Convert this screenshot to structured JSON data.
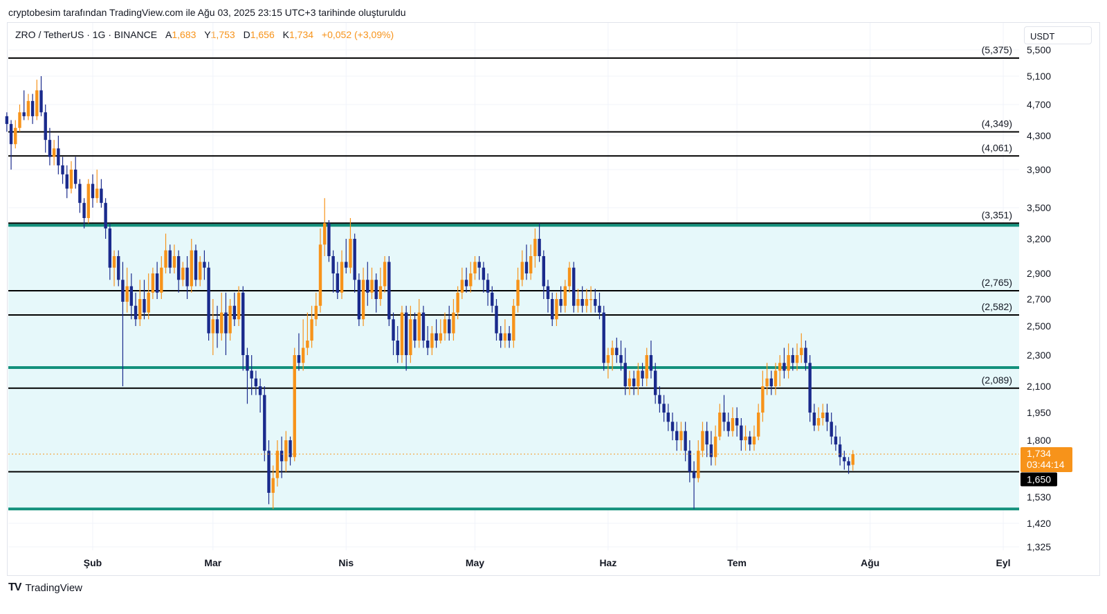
{
  "caption": "cryptobesim tarafından TradingView.com ile Ağu 03, 2025 23:15 UTC+3 tarihinde oluşturuldu",
  "legend": {
    "symbol": "ZRO / TetherUS · 1G · BINANCE",
    "open_label": "A",
    "open": "1,683",
    "high_label": "Y",
    "high": "1,753",
    "low_label": "D",
    "low": "1,656",
    "close_label": "K",
    "close": "1,734",
    "change": "+0,052 (+3,09%)"
  },
  "currency_button": "USDT",
  "price_tag": {
    "price": "1,734",
    "countdown": "03:44:14"
  },
  "level_tag": "1,650",
  "brand": "TradingView",
  "colors": {
    "up": "#f7931a",
    "down": "#1a2a8c",
    "channel": "#13917c",
    "channel_fill": "#e6f8fa",
    "level": "#000000",
    "grid": "#f0f3fa"
  },
  "chart_data": {
    "type": "candlestick",
    "y_axis_ticks": [
      "5,500",
      "5,100",
      "4,700",
      "4,300",
      "3,900",
      "3,500",
      "3,200",
      "2,900",
      "2,700",
      "2,500",
      "2,300",
      "2,100",
      "1,950",
      "1,800",
      "1,530",
      "1,420",
      "1,325"
    ],
    "y_axis_values": [
      5.5,
      5.1,
      4.7,
      4.3,
      3.9,
      3.5,
      3.2,
      2.9,
      2.7,
      2.5,
      2.3,
      2.1,
      1.95,
      1.8,
      1.53,
      1.42,
      1.325
    ],
    "x_axis_ticks": [
      "Şub",
      "Mar",
      "Nis",
      "May",
      "Haz",
      "Tem",
      "Ağu",
      "Eyl"
    ],
    "x_axis_dates": [
      "2025-02-01",
      "2025-03-01",
      "2025-04-01",
      "2025-05-01",
      "2025-06-01",
      "2025-07-01",
      "2025-08-01",
      "2025-09-01"
    ],
    "horizontal_levels": [
      {
        "value": 5.375,
        "label": "(5,375)"
      },
      {
        "value": 4.349,
        "label": "(4,349)"
      },
      {
        "value": 4.061,
        "label": "(4,061)"
      },
      {
        "value": 3.351,
        "label": "(3,351)"
      },
      {
        "value": 2.765,
        "label": "(2,765)"
      },
      {
        "value": 2.582,
        "label": "(2,582)"
      },
      {
        "value": 2.089,
        "label": "(2,089)"
      },
      {
        "value": 1.65,
        "label": ""
      }
    ],
    "channel": {
      "upper": 3.33,
      "middle": 2.22,
      "lower": 1.48
    },
    "last_price": 1.734,
    "first_date": "2025-01-12",
    "candles": [
      [
        4.55,
        4.45,
        4.6,
        4.35
      ],
      [
        4.45,
        4.2,
        4.5,
        3.9
      ],
      [
        4.2,
        4.4,
        4.5,
        4.15
      ],
      [
        4.4,
        4.6,
        4.7,
        4.35
      ],
      [
        4.6,
        4.55,
        4.9,
        4.5
      ],
      [
        4.55,
        4.75,
        4.85,
        4.5
      ],
      [
        4.75,
        4.55,
        4.85,
        4.45
      ],
      [
        4.55,
        4.9,
        5.05,
        4.5
      ],
      [
        4.9,
        4.6,
        5.1,
        4.55
      ],
      [
        4.6,
        4.25,
        4.7,
        4.1
      ],
      [
        4.25,
        4.05,
        4.4,
        3.95
      ],
      [
        4.05,
        4.15,
        4.25,
        3.95
      ],
      [
        4.15,
        3.95,
        4.3,
        3.85
      ],
      [
        3.95,
        3.85,
        4.05,
        3.75
      ],
      [
        3.85,
        3.7,
        3.95,
        3.6
      ],
      [
        3.7,
        3.9,
        4.0,
        3.65
      ],
      [
        3.9,
        3.75,
        4.05,
        3.7
      ],
      [
        3.75,
        3.55,
        3.8,
        3.45
      ],
      [
        3.55,
        3.4,
        3.6,
        3.3
      ],
      [
        3.4,
        3.75,
        3.8,
        3.35
      ],
      [
        3.75,
        3.6,
        3.85,
        3.5
      ],
      [
        3.6,
        3.7,
        3.9,
        3.55
      ],
      [
        3.7,
        3.55,
        3.8,
        3.5
      ],
      [
        3.55,
        3.3,
        3.6,
        3.2
      ],
      [
        3.3,
        2.95,
        3.35,
        2.85
      ],
      [
        2.95,
        3.05,
        3.1,
        2.8
      ],
      [
        3.05,
        2.85,
        3.1,
        2.8
      ],
      [
        2.85,
        2.68,
        3.0,
        2.1
      ],
      [
        2.68,
        2.8,
        2.95,
        2.6
      ],
      [
        2.8,
        2.65,
        2.9,
        2.55
      ],
      [
        2.65,
        2.55,
        2.75,
        2.5
      ],
      [
        2.55,
        2.7,
        2.85,
        2.5
      ],
      [
        2.7,
        2.6,
        2.85,
        2.55
      ],
      [
        2.6,
        2.75,
        2.9,
        2.55
      ],
      [
        2.75,
        2.9,
        2.95,
        2.7
      ],
      [
        2.9,
        2.75,
        3.0,
        2.7
      ],
      [
        2.75,
        2.95,
        3.05,
        2.7
      ],
      [
        2.95,
        3.1,
        3.25,
        2.9
      ],
      [
        3.1,
        2.95,
        3.15,
        2.9
      ],
      [
        2.95,
        3.05,
        3.15,
        2.9
      ],
      [
        3.05,
        2.85,
        3.1,
        2.75
      ],
      [
        2.85,
        2.95,
        3.0,
        2.8
      ],
      [
        2.95,
        2.8,
        3.05,
        2.7
      ],
      [
        2.8,
        3.1,
        3.2,
        2.75
      ],
      [
        3.1,
        2.85,
        3.15,
        2.8
      ],
      [
        2.85,
        3.0,
        3.05,
        2.8
      ],
      [
        3.0,
        2.95,
        3.1,
        2.85
      ],
      [
        2.95,
        2.45,
        3.0,
        2.4
      ],
      [
        2.45,
        2.55,
        2.7,
        2.3
      ],
      [
        2.55,
        2.45,
        2.65,
        2.35
      ],
      [
        2.45,
        2.6,
        2.75,
        2.4
      ],
      [
        2.6,
        2.45,
        2.75,
        2.3
      ],
      [
        2.45,
        2.65,
        2.7,
        2.4
      ],
      [
        2.65,
        2.55,
        2.75,
        2.5
      ],
      [
        2.55,
        2.75,
        2.8,
        2.5
      ],
      [
        2.75,
        2.3,
        2.8,
        2.2
      ],
      [
        2.3,
        2.2,
        2.35,
        2.0
      ],
      [
        2.2,
        2.15,
        2.3,
        2.05
      ],
      [
        2.15,
        2.1,
        2.2,
        2.05
      ],
      [
        2.1,
        2.05,
        2.15,
        1.95
      ],
      [
        2.05,
        1.75,
        2.1,
        1.7
      ],
      [
        1.75,
        1.55,
        1.8,
        1.5
      ],
      [
        1.55,
        1.62,
        1.68,
        1.48
      ],
      [
        1.62,
        1.75,
        1.8,
        1.58
      ],
      [
        1.75,
        1.7,
        1.82,
        1.62
      ],
      [
        1.7,
        1.8,
        1.85,
        1.65
      ],
      [
        1.8,
        1.72,
        1.82,
        1.68
      ],
      [
        1.72,
        2.3,
        2.35,
        1.7
      ],
      [
        2.3,
        2.25,
        2.45,
        2.2
      ],
      [
        2.25,
        2.35,
        2.55,
        2.2
      ],
      [
        2.35,
        2.4,
        2.6,
        2.3
      ],
      [
        2.4,
        2.55,
        2.65,
        2.35
      ],
      [
        2.55,
        2.65,
        2.75,
        2.5
      ],
      [
        2.65,
        3.15,
        3.3,
        2.6
      ],
      [
        3.15,
        3.35,
        3.6,
        3.05
      ],
      [
        3.35,
        3.05,
        3.38,
        3.0
      ],
      [
        3.05,
        2.9,
        3.1,
        2.75
      ],
      [
        2.9,
        2.75,
        3.0,
        2.7
      ],
      [
        2.75,
        3.0,
        3.1,
        2.7
      ],
      [
        3.0,
        2.95,
        3.2,
        2.9
      ],
      [
        2.95,
        3.2,
        3.4,
        2.9
      ],
      [
        3.2,
        2.85,
        3.25,
        2.75
      ],
      [
        2.85,
        2.55,
        2.9,
        2.5
      ],
      [
        2.55,
        2.85,
        2.95,
        2.5
      ],
      [
        2.85,
        2.75,
        3.0,
        2.65
      ],
      [
        2.75,
        2.85,
        2.95,
        2.7
      ],
      [
        2.85,
        2.7,
        2.9,
        2.6
      ],
      [
        2.7,
        2.8,
        2.95,
        2.65
      ],
      [
        2.8,
        3.0,
        3.05,
        2.75
      ],
      [
        3.0,
        2.55,
        3.05,
        2.5
      ],
      [
        2.55,
        2.4,
        2.6,
        2.3
      ],
      [
        2.4,
        2.3,
        2.5,
        2.25
      ],
      [
        2.3,
        2.6,
        2.65,
        2.25
      ],
      [
        2.6,
        2.3,
        2.65,
        2.2
      ],
      [
        2.3,
        2.55,
        2.65,
        2.25
      ],
      [
        2.55,
        2.4,
        2.6,
        2.35
      ],
      [
        2.4,
        2.6,
        2.7,
        2.35
      ],
      [
        2.6,
        2.4,
        2.65,
        2.35
      ],
      [
        2.4,
        2.35,
        2.5,
        2.3
      ],
      [
        2.35,
        2.45,
        2.5,
        2.3
      ],
      [
        2.45,
        2.4,
        2.55,
        2.35
      ],
      [
        2.4,
        2.45,
        2.55,
        2.38
      ],
      [
        2.45,
        2.55,
        2.6,
        2.4
      ],
      [
        2.55,
        2.45,
        2.65,
        2.4
      ],
      [
        2.45,
        2.6,
        2.7,
        2.4
      ],
      [
        2.6,
        2.75,
        2.8,
        2.55
      ],
      [
        2.75,
        2.85,
        2.95,
        2.7
      ],
      [
        2.85,
        2.8,
        2.95,
        2.75
      ],
      [
        2.8,
        2.9,
        3.0,
        2.75
      ],
      [
        2.9,
        3.0,
        3.05,
        2.85
      ],
      [
        3.0,
        2.95,
        3.05,
        2.85
      ],
      [
        2.95,
        2.85,
        3.0,
        2.75
      ],
      [
        2.85,
        2.75,
        2.9,
        2.65
      ],
      [
        2.75,
        2.65,
        2.8,
        2.6
      ],
      [
        2.65,
        2.45,
        2.7,
        2.4
      ],
      [
        2.45,
        2.4,
        2.5,
        2.35
      ],
      [
        2.4,
        2.45,
        2.55,
        2.35
      ],
      [
        2.45,
        2.4,
        2.5,
        2.35
      ],
      [
        2.4,
        2.65,
        2.7,
        2.35
      ],
      [
        2.65,
        2.85,
        2.95,
        2.6
      ],
      [
        2.85,
        3.0,
        3.1,
        2.8
      ],
      [
        3.0,
        2.9,
        3.15,
        2.85
      ],
      [
        2.9,
        3.05,
        3.15,
        2.85
      ],
      [
        3.05,
        3.2,
        3.3,
        2.95
      ],
      [
        3.2,
        3.05,
        3.35,
        3.0
      ],
      [
        3.05,
        2.8,
        3.1,
        2.7
      ],
      [
        2.8,
        2.7,
        2.85,
        2.6
      ],
      [
        2.7,
        2.55,
        2.75,
        2.5
      ],
      [
        2.55,
        2.7,
        2.75,
        2.5
      ],
      [
        2.7,
        2.65,
        2.8,
        2.6
      ],
      [
        2.65,
        2.8,
        2.85,
        2.6
      ],
      [
        2.8,
        2.95,
        3.0,
        2.75
      ],
      [
        2.95,
        2.65,
        3.0,
        2.6
      ],
      [
        2.65,
        2.7,
        2.78,
        2.6
      ],
      [
        2.7,
        2.65,
        2.8,
        2.6
      ],
      [
        2.65,
        2.7,
        2.78,
        2.6
      ],
      [
        2.7,
        2.7,
        2.8,
        2.6
      ],
      [
        2.7,
        2.65,
        2.78,
        2.6
      ],
      [
        2.65,
        2.6,
        2.75,
        2.55
      ],
      [
        2.6,
        2.25,
        2.65,
        2.2
      ],
      [
        2.25,
        2.3,
        2.35,
        2.15
      ],
      [
        2.3,
        2.35,
        2.4,
        2.2
      ],
      [
        2.35,
        2.3,
        2.42,
        2.25
      ],
      [
        2.3,
        2.25,
        2.4,
        2.2
      ],
      [
        2.25,
        2.1,
        2.35,
        2.05
      ],
      [
        2.1,
        2.15,
        2.2,
        2.05
      ],
      [
        2.15,
        2.1,
        2.2,
        2.05
      ],
      [
        2.1,
        2.2,
        2.25,
        2.05
      ],
      [
        2.2,
        2.15,
        2.25,
        2.1
      ],
      [
        2.15,
        2.3,
        2.35,
        2.1
      ],
      [
        2.3,
        2.2,
        2.4,
        2.15
      ],
      [
        2.2,
        2.05,
        2.25,
        2.0
      ],
      [
        2.05,
        2.0,
        2.1,
        1.95
      ],
      [
        2.0,
        1.95,
        2.05,
        1.9
      ],
      [
        1.95,
        1.9,
        2.0,
        1.85
      ],
      [
        1.9,
        1.85,
        1.95,
        1.8
      ],
      [
        1.85,
        1.8,
        1.9,
        1.75
      ],
      [
        1.8,
        1.85,
        1.9,
        1.75
      ],
      [
        1.85,
        1.75,
        1.9,
        1.7
      ],
      [
        1.75,
        1.65,
        1.8,
        1.6
      ],
      [
        1.65,
        1.62,
        1.7,
        1.48
      ],
      [
        1.62,
        1.75,
        1.8,
        1.6
      ],
      [
        1.75,
        1.85,
        1.9,
        1.72
      ],
      [
        1.85,
        1.78,
        1.9,
        1.72
      ],
      [
        1.78,
        1.72,
        1.85,
        1.68
      ],
      [
        1.72,
        1.82,
        1.88,
        1.68
      ],
      [
        1.82,
        1.95,
        2.0,
        1.8
      ],
      [
        1.95,
        1.9,
        2.05,
        1.85
      ],
      [
        1.9,
        1.85,
        1.95,
        1.82
      ],
      [
        1.85,
        1.92,
        1.98,
        1.82
      ],
      [
        1.92,
        1.88,
        1.98,
        1.82
      ],
      [
        1.88,
        1.8,
        1.92,
        1.75
      ],
      [
        1.8,
        1.82,
        1.88,
        1.75
      ],
      [
        1.82,
        1.78,
        1.85,
        1.75
      ],
      [
        1.78,
        1.82,
        1.88,
        1.75
      ],
      [
        1.82,
        1.95,
        2.0,
        1.8
      ],
      [
        1.95,
        2.1,
        2.2,
        1.9
      ],
      [
        2.1,
        2.15,
        2.25,
        2.05
      ],
      [
        2.15,
        2.1,
        2.2,
        2.05
      ],
      [
        2.1,
        2.2,
        2.25,
        2.05
      ],
      [
        2.2,
        2.25,
        2.3,
        2.1
      ],
      [
        2.25,
        2.2,
        2.35,
        2.15
      ],
      [
        2.2,
        2.3,
        2.38,
        2.15
      ],
      [
        2.3,
        2.25,
        2.35,
        2.2
      ],
      [
        2.25,
        2.3,
        2.38,
        2.2
      ],
      [
        2.3,
        2.35,
        2.45,
        2.25
      ],
      [
        2.35,
        2.25,
        2.4,
        2.2
      ],
      [
        2.25,
        1.95,
        2.3,
        1.9
      ],
      [
        1.95,
        1.88,
        2.0,
        1.85
      ],
      [
        1.88,
        1.92,
        1.98,
        1.85
      ],
      [
        1.92,
        1.95,
        2.0,
        1.88
      ],
      [
        1.95,
        1.9,
        2.0,
        1.85
      ],
      [
        1.9,
        1.82,
        1.95,
        1.78
      ],
      [
        1.82,
        1.78,
        1.88,
        1.75
      ],
      [
        1.78,
        1.72,
        1.82,
        1.68
      ],
      [
        1.72,
        1.7,
        1.75,
        1.66
      ],
      [
        1.7,
        1.68,
        1.72,
        1.64
      ],
      [
        1.683,
        1.734,
        1.753,
        1.656
      ]
    ]
  }
}
